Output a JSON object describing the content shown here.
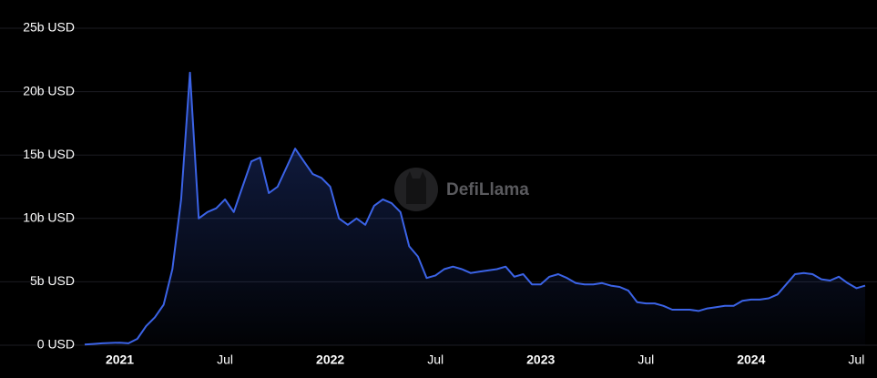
{
  "chart_data": {
    "type": "area",
    "watermark": "DefiLlama",
    "categories": [
      null,
      null,
      null,
      null,
      "2021",
      null,
      null,
      null,
      null,
      null,
      null,
      null,
      null,
      null,
      null,
      null,
      "Jul",
      null,
      null,
      null,
      null,
      null,
      null,
      null,
      null,
      null,
      null,
      null,
      "2022",
      null,
      null,
      null,
      null,
      null,
      null,
      null,
      null,
      null,
      null,
      null,
      "Jul",
      null,
      null,
      null,
      null,
      null,
      null,
      null,
      null,
      null,
      null,
      null,
      "2023",
      null,
      null,
      null,
      null,
      null,
      null,
      null,
      null,
      null,
      null,
      null,
      "Jul",
      null,
      null,
      null,
      null,
      null,
      null,
      null,
      null,
      null,
      null,
      null,
      "2024",
      null,
      null,
      null,
      null,
      null,
      null,
      null,
      null,
      null,
      null,
      null,
      "Jul",
      null
    ],
    "values": [
      0.05,
      0.1,
      0.15,
      0.18,
      0.2,
      0.15,
      0.5,
      1.5,
      2.2,
      3.2,
      6,
      11.5,
      21.5,
      10,
      10.5,
      10.8,
      11.5,
      10.5,
      12.5,
      14.5,
      14.8,
      12,
      12.5,
      14,
      15.5,
      14.5,
      13.5,
      13.2,
      12.5,
      10,
      9.5,
      10,
      9.5,
      11,
      11.5,
      11.2,
      10.5,
      7.8,
      7,
      5.3,
      5.5,
      6,
      6.2,
      6,
      5.7,
      5.8,
      5.9,
      6,
      6.2,
      5.4,
      5.6,
      4.8,
      4.8,
      5.4,
      5.6,
      5.3,
      4.9,
      4.8,
      4.8,
      4.9,
      4.7,
      4.6,
      4.3,
      3.4,
      3.3,
      3.3,
      3.1,
      2.8,
      2.8,
      2.8,
      2.7,
      2.9,
      3,
      3.1,
      3.1,
      3.5,
      3.6,
      3.6,
      3.7,
      4,
      4.8,
      5.6,
      5.7,
      5.6,
      5.2,
      5.1,
      5.4,
      4.9,
      4.5,
      4.7
    ],
    "color": "#3b63e6",
    "ylim": [
      0,
      25
    ],
    "yticks": [
      {
        "value": 0,
        "label": "0 USD"
      },
      {
        "value": 5,
        "label": "5b USD"
      },
      {
        "value": 10,
        "label": "10b USD"
      },
      {
        "value": 15,
        "label": "15b USD"
      },
      {
        "value": 20,
        "label": "20b USD"
      },
      {
        "value": 25,
        "label": "25b USD"
      }
    ],
    "grid": true
  }
}
